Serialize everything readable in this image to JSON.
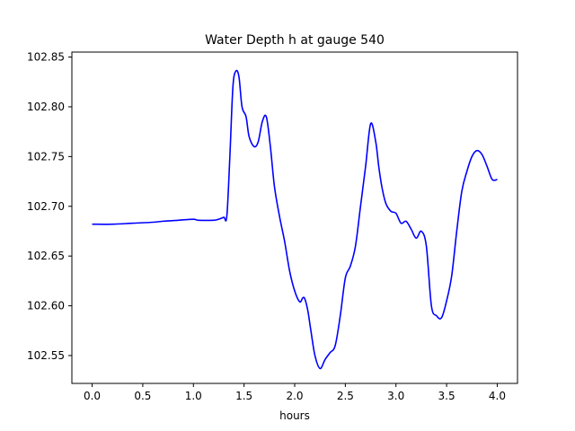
{
  "chart_data": {
    "type": "line",
    "title": "Water Depth h at gauge 540",
    "xlabel": "hours",
    "ylabel": "",
    "xlim": [
      -0.2,
      4.2
    ],
    "ylim": [
      102.522,
      102.855
    ],
    "grid": false,
    "x_ticks": [
      0.0,
      0.5,
      1.0,
      1.5,
      2.0,
      2.5,
      3.0,
      3.5,
      4.0
    ],
    "x_tick_labels": [
      "0.0",
      "0.5",
      "1.0",
      "1.5",
      "2.0",
      "2.5",
      "3.0",
      "3.5",
      "4.0"
    ],
    "y_ticks": [
      102.55,
      102.6,
      102.65,
      102.7,
      102.75,
      102.8,
      102.85
    ],
    "y_tick_labels": [
      "102.55",
      "102.60",
      "102.65",
      "102.70",
      "102.75",
      "102.80",
      "102.85"
    ],
    "series": [
      {
        "color": "#0000ff",
        "x": [
          0.0,
          0.2,
          0.4,
          0.6,
          0.7,
          0.85,
          1.0,
          1.05,
          1.2,
          1.25,
          1.3,
          1.33,
          1.36,
          1.39,
          1.42,
          1.45,
          1.48,
          1.52,
          1.55,
          1.6,
          1.64,
          1.68,
          1.72,
          1.76,
          1.8,
          1.85,
          1.9,
          1.95,
          2.0,
          2.05,
          2.08,
          2.1,
          2.13,
          2.16,
          2.2,
          2.25,
          2.3,
          2.35,
          2.4,
          2.45,
          2.5,
          2.55,
          2.6,
          2.65,
          2.7,
          2.75,
          2.8,
          2.83,
          2.86,
          2.9,
          2.95,
          3.0,
          3.05,
          3.1,
          3.15,
          3.2,
          3.25,
          3.3,
          3.35,
          3.4,
          3.45,
          3.5,
          3.55,
          3.6,
          3.65,
          3.7,
          3.75,
          3.8,
          3.85,
          3.9,
          3.95,
          4.0
        ],
        "y": [
          102.682,
          102.682,
          102.683,
          102.684,
          102.685,
          102.686,
          102.687,
          102.686,
          102.686,
          102.687,
          102.689,
          102.69,
          102.75,
          102.82,
          102.836,
          102.83,
          102.8,
          102.79,
          102.77,
          102.76,
          102.765,
          102.785,
          102.79,
          102.76,
          102.72,
          102.69,
          102.665,
          102.635,
          102.615,
          102.604,
          102.608,
          102.607,
          102.595,
          102.575,
          102.55,
          102.537,
          102.546,
          102.553,
          102.56,
          102.59,
          102.628,
          102.64,
          102.66,
          102.7,
          102.74,
          102.783,
          102.765,
          102.74,
          102.72,
          102.703,
          102.695,
          102.693,
          102.683,
          102.685,
          102.677,
          102.668,
          102.675,
          102.66,
          102.6,
          102.59,
          102.588,
          102.605,
          102.63,
          102.675,
          102.715,
          102.735,
          102.75,
          102.756,
          102.752,
          102.74,
          102.727,
          102.727
        ]
      }
    ]
  }
}
